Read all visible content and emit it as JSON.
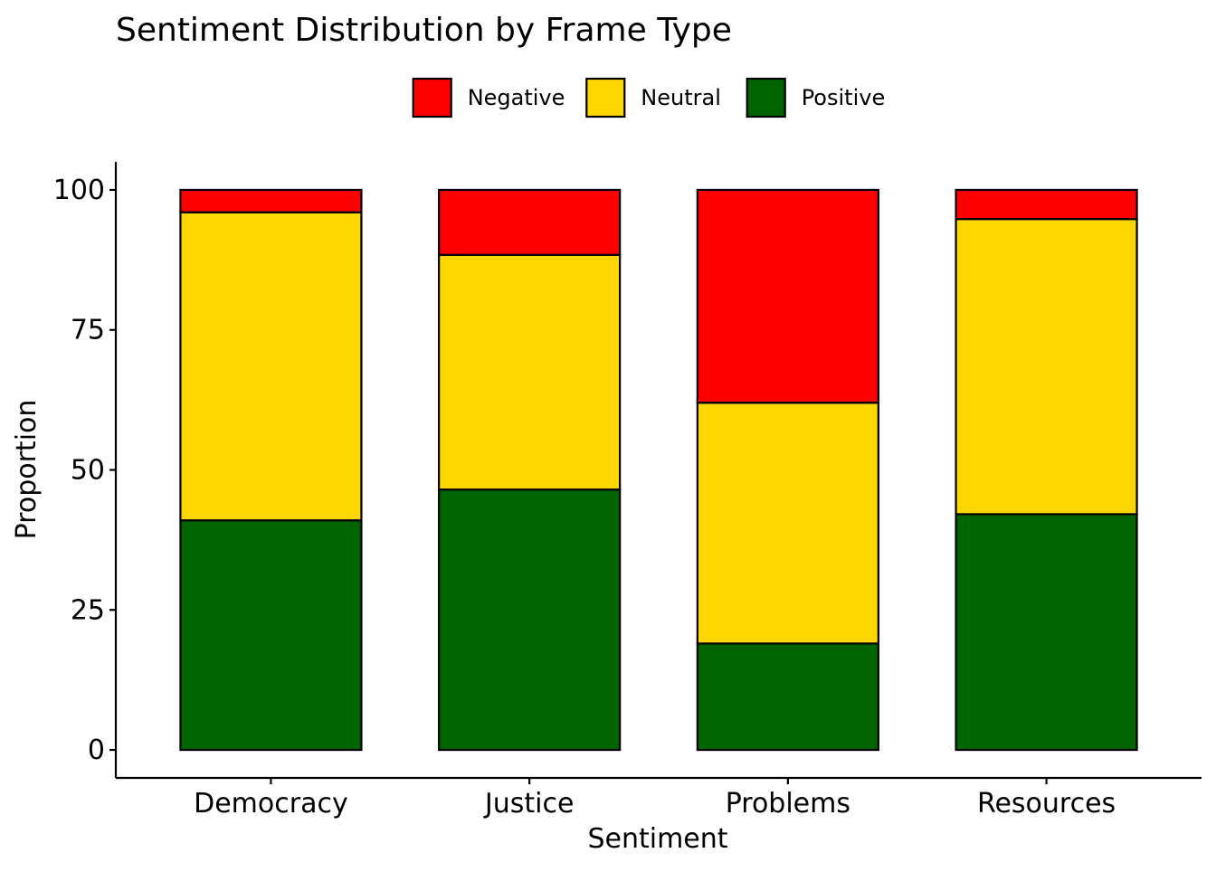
{
  "chart_data": {
    "type": "bar",
    "stacked": true,
    "title": "Sentiment Distribution by Frame Type",
    "xlabel": "Sentiment",
    "ylabel": "Proportion",
    "categories": [
      "Democracy",
      "Justice",
      "Problems",
      "Resources"
    ],
    "ylim": [
      -5,
      105
    ],
    "yticks": [
      0,
      25,
      50,
      75,
      100
    ],
    "grid": false,
    "legend_position": "top",
    "series": [
      {
        "name": "Positive",
        "color": "#006400",
        "values": [
          41.0,
          46.5,
          19.0,
          42.1
        ]
      },
      {
        "name": "Neutral",
        "color": "#FFD700",
        "values": [
          55.0,
          41.9,
          43.0,
          52.7
        ]
      },
      {
        "name": "Negative",
        "color": "#FF0000",
        "values": [
          4.0,
          11.6,
          38.0,
          5.2
        ]
      }
    ],
    "legend_order": [
      "Negative",
      "Neutral",
      "Positive"
    ]
  }
}
